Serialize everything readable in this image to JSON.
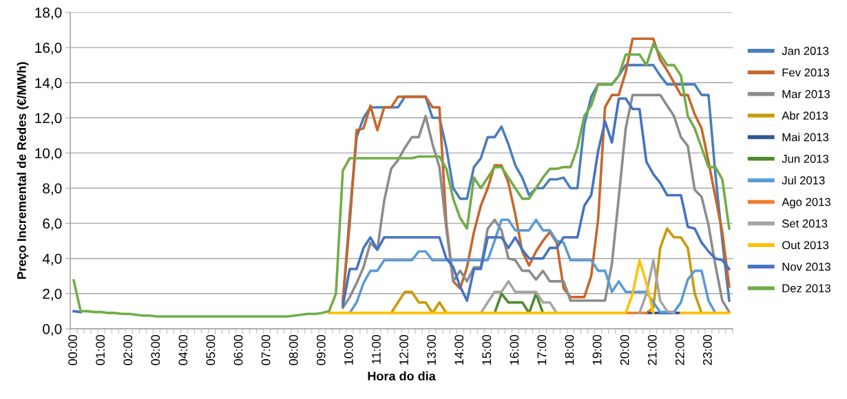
{
  "chart_data": {
    "type": "line",
    "xlabel": "Hora do dia",
    "ylabel": "Preço Incremental de Redes (€/MWh)",
    "categories": [
      "00:00",
      null,
      null,
      null,
      "01:00",
      null,
      null,
      null,
      "02:00",
      null,
      null,
      null,
      "03:00",
      null,
      null,
      null,
      "04:00",
      null,
      null,
      null,
      "05:00",
      null,
      null,
      null,
      "06:00",
      null,
      null,
      null,
      "07:00",
      null,
      null,
      null,
      "08:00",
      null,
      null,
      null,
      "09:00",
      null,
      null,
      null,
      "10:00",
      null,
      null,
      null,
      "11:00",
      null,
      null,
      null,
      "12:00",
      null,
      null,
      null,
      "13:00",
      null,
      null,
      null,
      "14:00",
      null,
      null,
      null,
      "15:00",
      null,
      null,
      null,
      "16:00",
      null,
      null,
      null,
      "17:00",
      null,
      null,
      null,
      "18:00",
      null,
      null,
      null,
      "19:00",
      null,
      null,
      null,
      "20:00",
      null,
      null,
      null,
      "21:00",
      null,
      null,
      null,
      "22:00",
      null,
      null,
      null,
      "23:00",
      null,
      null,
      null
    ],
    "ylim": [
      0,
      18
    ],
    "yticks": [
      {
        "value": 0,
        "label": "0,0"
      },
      {
        "value": 2,
        "label": "2,0"
      },
      {
        "value": 4,
        "label": "4,0"
      },
      {
        "value": 6,
        "label": "6,0"
      },
      {
        "value": 8,
        "label": "8,0"
      },
      {
        "value": 10,
        "label": "10,0"
      },
      {
        "value": 12,
        "label": "12,0"
      },
      {
        "value": 14,
        "label": "14,0"
      },
      {
        "value": 16,
        "label": "16,0"
      },
      {
        "value": 18,
        "label": "18,0"
      }
    ],
    "grid": "y",
    "legend": "right",
    "line_style": "solid",
    "marker": "none",
    "series": [
      {
        "name": "Jan 2013",
        "color": "#4a7ebb",
        "values": [
          null,
          null,
          null,
          null,
          null,
          null,
          null,
          null,
          null,
          null,
          null,
          null,
          null,
          null,
          null,
          null,
          null,
          null,
          null,
          null,
          null,
          null,
          null,
          null,
          null,
          null,
          null,
          null,
          null,
          null,
          null,
          null,
          null,
          null,
          null,
          null,
          null,
          null,
          null,
          1.5,
          6.5,
          10.9,
          12.0,
          12.6,
          12.6,
          12.6,
          12.6,
          12.6,
          13.2,
          13.2,
          13.2,
          13.2,
          12.0,
          12.0,
          10.3,
          8.0,
          7.4,
          7.4,
          9.2,
          9.7,
          10.9,
          10.9,
          11.5,
          10.5,
          9.3,
          8.6,
          7.6,
          8.0,
          8.0,
          8.5,
          8.5,
          8.6,
          8.0,
          8.0,
          11.6,
          13.2,
          13.9,
          13.9,
          13.9,
          14.4,
          15.0,
          15.0,
          15.0,
          15.0,
          15.0,
          14.4,
          13.9,
          13.9,
          13.9,
          13.9,
          13.9,
          13.3,
          13.3,
          8.8,
          5.0,
          1.6
        ]
      },
      {
        "name": "Fev 2013",
        "color": "#c8662a",
        "values": [
          null,
          null,
          null,
          null,
          null,
          null,
          null,
          null,
          null,
          null,
          null,
          null,
          null,
          null,
          null,
          null,
          null,
          null,
          null,
          null,
          null,
          null,
          null,
          null,
          null,
          null,
          null,
          null,
          null,
          null,
          null,
          null,
          null,
          null,
          null,
          null,
          null,
          null,
          null,
          1.6,
          6.0,
          11.3,
          11.4,
          12.7,
          11.3,
          12.6,
          12.6,
          13.2,
          13.2,
          13.2,
          13.2,
          13.2,
          12.6,
          12.6,
          6.0,
          2.7,
          2.3,
          3.5,
          5.5,
          7.0,
          8.0,
          9.3,
          9.3,
          8.3,
          6.5,
          4.4,
          3.6,
          4.4,
          5.0,
          5.5,
          4.9,
          2.3,
          1.8,
          1.8,
          1.8,
          3.0,
          6.2,
          12.6,
          13.3,
          13.3,
          14.6,
          16.5,
          16.5,
          16.5,
          16.5,
          15.3,
          14.7,
          14.0,
          13.3,
          13.3,
          12.2,
          11.4,
          9.5,
          7.5,
          5.5,
          2.4
        ]
      },
      {
        "name": "Mar 2013",
        "color": "#8c8c8c",
        "values": [
          null,
          null,
          null,
          null,
          null,
          null,
          null,
          null,
          null,
          null,
          null,
          null,
          null,
          null,
          null,
          null,
          null,
          null,
          null,
          null,
          null,
          null,
          null,
          null,
          null,
          null,
          null,
          null,
          null,
          null,
          null,
          null,
          null,
          null,
          null,
          null,
          null,
          null,
          null,
          1.2,
          1.8,
          2.6,
          3.5,
          4.9,
          4.5,
          7.3,
          9.1,
          9.6,
          10.3,
          10.9,
          10.9,
          12.1,
          10.5,
          9.2,
          5.7,
          2.7,
          3.3,
          2.7,
          3.5,
          3.5,
          5.7,
          6.2,
          5.6,
          4.0,
          3.9,
          3.3,
          3.3,
          2.8,
          3.3,
          2.7,
          2.7,
          2.7,
          1.6,
          1.6,
          1.6,
          1.6,
          1.6,
          1.6,
          3.7,
          7.5,
          11.4,
          13.3,
          13.3,
          13.3,
          13.3,
          13.3,
          12.7,
          12.1,
          10.9,
          10.4,
          7.9,
          7.5,
          5.9,
          3.6,
          1.6,
          0.95
        ]
      },
      {
        "name": "Abr 2013",
        "color": "#c99a06",
        "values": [
          null,
          null,
          null,
          null,
          null,
          null,
          null,
          null,
          null,
          null,
          null,
          null,
          null,
          null,
          null,
          null,
          null,
          null,
          null,
          null,
          null,
          null,
          null,
          null,
          null,
          null,
          null,
          null,
          null,
          null,
          null,
          null,
          null,
          null,
          null,
          null,
          null,
          null,
          null,
          null,
          null,
          null,
          null,
          null,
          null,
          null,
          0.9,
          1.5,
          2.1,
          2.1,
          1.5,
          1.5,
          0.9,
          1.5,
          0.9,
          null,
          null,
          null,
          null,
          null,
          null,
          null,
          null,
          null,
          null,
          null,
          null,
          null,
          null,
          null,
          null,
          null,
          null,
          null,
          null,
          null,
          null,
          null,
          null,
          null,
          null,
          null,
          null,
          0.9,
          1.2,
          4.6,
          5.7,
          5.2,
          5.2,
          4.6,
          2.0,
          0.9,
          null,
          null,
          null,
          null
        ]
      },
      {
        "name": "Mai 2013",
        "color": "#2f5597",
        "values": [
          null,
          null,
          null,
          null,
          null,
          null,
          null,
          null,
          null,
          null,
          null,
          null,
          null,
          null,
          null,
          null,
          null,
          null,
          null,
          null,
          null,
          null,
          null,
          null,
          null,
          null,
          null,
          null,
          null,
          null,
          null,
          null,
          null,
          null,
          null,
          null,
          null,
          null,
          null,
          null,
          null,
          null,
          null,
          null,
          null,
          null,
          null,
          null,
          null,
          null,
          null,
          null,
          null,
          null,
          null,
          null,
          null,
          null,
          null,
          null,
          null,
          null,
          null,
          null,
          null,
          null,
          null,
          null,
          null,
          null,
          null,
          null,
          null,
          null,
          null,
          null,
          null,
          null,
          null,
          null,
          null,
          null,
          null,
          0.9,
          0.9,
          0.9,
          0.9,
          0.9,
          0.9,
          null,
          null,
          null,
          null,
          null,
          null,
          null
        ]
      },
      {
        "name": "Jun 2013",
        "color": "#4e8a2e",
        "values": [
          null,
          null,
          null,
          null,
          null,
          null,
          null,
          null,
          null,
          null,
          null,
          null,
          null,
          null,
          null,
          null,
          null,
          null,
          null,
          null,
          null,
          null,
          null,
          null,
          null,
          null,
          null,
          null,
          null,
          null,
          null,
          null,
          null,
          null,
          null,
          null,
          null,
          null,
          null,
          null,
          null,
          null,
          null,
          null,
          null,
          null,
          null,
          null,
          null,
          null,
          null,
          null,
          null,
          null,
          null,
          null,
          null,
          null,
          null,
          null,
          null,
          0.9,
          2.0,
          1.5,
          1.5,
          1.5,
          0.9,
          2.0,
          0.9,
          null,
          null,
          null,
          null,
          null,
          null,
          null,
          null,
          null,
          null,
          null,
          null,
          null,
          null,
          null,
          null,
          null,
          null,
          null,
          null,
          null,
          null,
          null,
          null,
          null,
          null,
          null
        ]
      },
      {
        "name": "Jul 2013",
        "color": "#5b9bd5",
        "values": [
          null,
          null,
          null,
          null,
          null,
          null,
          null,
          null,
          null,
          null,
          null,
          null,
          null,
          null,
          null,
          null,
          null,
          null,
          null,
          null,
          null,
          null,
          null,
          null,
          null,
          null,
          null,
          null,
          null,
          null,
          null,
          null,
          null,
          null,
          null,
          null,
          null,
          null,
          null,
          null,
          0.9,
          1.5,
          2.6,
          3.3,
          3.3,
          3.9,
          3.9,
          3.9,
          3.9,
          3.9,
          4.4,
          4.4,
          3.9,
          3.9,
          3.9,
          3.9,
          3.9,
          3.9,
          3.9,
          3.9,
          3.9,
          5.0,
          6.2,
          6.2,
          5.6,
          5.6,
          5.6,
          6.2,
          5.6,
          5.6,
          5.0,
          4.9,
          3.9,
          3.9,
          3.9,
          3.9,
          3.3,
          3.3,
          2.1,
          2.7,
          2.1,
          2.1,
          2.1,
          2.1,
          1.5,
          0.95,
          0.95,
          0.95,
          1.5,
          2.8,
          3.3,
          3.3,
          1.6,
          0.9,
          null,
          null
        ]
      },
      {
        "name": "Ago 2013",
        "color": "#ed7d31",
        "values": [
          null,
          null,
          null,
          null,
          null,
          null,
          null,
          null,
          null,
          null,
          null,
          null,
          null,
          null,
          null,
          null,
          null,
          null,
          null,
          null,
          null,
          null,
          null,
          null,
          null,
          null,
          null,
          null,
          null,
          null,
          null,
          null,
          null,
          null,
          null,
          null,
          null,
          null,
          null,
          null,
          null,
          null,
          null,
          null,
          null,
          null,
          null,
          null,
          null,
          null,
          null,
          null,
          null,
          null,
          null,
          null,
          null,
          null,
          null,
          null,
          null,
          null,
          null,
          null,
          null,
          null,
          null,
          null,
          null,
          null,
          null,
          null,
          null,
          null,
          null,
          null,
          null,
          null,
          null,
          null,
          0.9,
          0.9,
          0.9,
          0.9,
          null,
          null,
          null,
          null,
          null,
          null,
          null,
          null,
          null,
          null,
          null,
          null
        ]
      },
      {
        "name": "Set 2013",
        "color": "#a5a5a5",
        "values": [
          null,
          null,
          null,
          null,
          null,
          null,
          null,
          null,
          null,
          null,
          null,
          null,
          null,
          null,
          null,
          null,
          null,
          null,
          null,
          null,
          null,
          null,
          null,
          null,
          null,
          null,
          null,
          null,
          null,
          null,
          null,
          null,
          null,
          null,
          null,
          null,
          null,
          null,
          null,
          null,
          null,
          null,
          null,
          null,
          null,
          null,
          null,
          null,
          null,
          null,
          null,
          null,
          null,
          null,
          null,
          null,
          null,
          null,
          null,
          0.9,
          1.5,
          2.1,
          2.1,
          2.7,
          2.1,
          2.1,
          2.1,
          2.1,
          1.5,
          1.5,
          0.9,
          null,
          null,
          null,
          null,
          null,
          null,
          null,
          null,
          null,
          null,
          null,
          0.9,
          2.0,
          3.9,
          1.6,
          1.0,
          0.9,
          null,
          null,
          null,
          null,
          null,
          null,
          null,
          null
        ]
      },
      {
        "name": "Out 2013",
        "color": "#ffc000",
        "values": [
          null,
          null,
          null,
          null,
          null,
          null,
          null,
          null,
          null,
          null,
          null,
          null,
          null,
          null,
          null,
          null,
          null,
          null,
          null,
          null,
          null,
          null,
          null,
          null,
          null,
          null,
          null,
          null,
          null,
          null,
          null,
          null,
          null,
          null,
          null,
          null,
          null,
          0.9,
          0.9,
          0.9,
          0.9,
          0.9,
          0.9,
          0.9,
          0.9,
          0.9,
          0.9,
          0.9,
          0.9,
          0.9,
          0.9,
          0.9,
          0.9,
          0.9,
          0.9,
          0.9,
          0.9,
          0.9,
          0.9,
          0.9,
          0.9,
          0.9,
          0.9,
          0.9,
          0.9,
          0.9,
          0.9,
          0.9,
          0.9,
          0.9,
          0.9,
          0.9,
          0.9,
          0.9,
          0.9,
          0.9,
          0.9,
          0.9,
          0.9,
          0.9,
          0.9,
          2.0,
          3.9,
          2.6,
          0.9,
          null,
          null,
          null,
          0.9,
          0.9,
          0.9,
          0.9,
          0.9,
          0.9,
          0.9,
          0.9
        ]
      },
      {
        "name": "Nov 2013",
        "color": "#4472c4",
        "values": [
          1.0,
          0.95,
          null,
          null,
          null,
          null,
          null,
          null,
          null,
          null,
          null,
          null,
          null,
          null,
          null,
          null,
          null,
          null,
          null,
          null,
          null,
          null,
          null,
          null,
          null,
          null,
          null,
          null,
          null,
          null,
          null,
          null,
          null,
          null,
          null,
          null,
          null,
          null,
          null,
          1.3,
          3.4,
          3.4,
          4.6,
          5.2,
          4.5,
          5.2,
          5.2,
          5.2,
          5.2,
          5.2,
          5.2,
          5.2,
          5.2,
          5.2,
          4.0,
          3.5,
          2.4,
          1.6,
          3.4,
          3.4,
          5.2,
          5.2,
          5.2,
          4.6,
          5.2,
          4.5,
          4.0,
          4.0,
          4.0,
          4.6,
          4.6,
          5.2,
          5.2,
          5.2,
          7.0,
          7.6,
          10.1,
          11.8,
          10.6,
          13.1,
          13.1,
          12.5,
          12.5,
          9.5,
          8.8,
          8.3,
          7.6,
          7.6,
          7.6,
          5.8,
          5.7,
          4.9,
          4.4,
          4.0,
          3.9,
          3.4
        ]
      },
      {
        "name": "Dez 2013",
        "color": "#70ad47",
        "values": [
          2.75,
          1.0,
          1.0,
          0.95,
          0.95,
          0.9,
          0.9,
          0.85,
          0.85,
          0.8,
          0.75,
          0.75,
          0.7,
          0.7,
          0.7,
          0.7,
          0.7,
          0.7,
          0.7,
          0.7,
          0.7,
          0.7,
          0.7,
          0.7,
          0.7,
          0.7,
          0.7,
          0.7,
          0.7,
          0.7,
          0.7,
          0.7,
          0.75,
          0.8,
          0.85,
          0.85,
          0.9,
          1.0,
          2.0,
          9.0,
          9.7,
          9.7,
          9.7,
          9.7,
          9.7,
          9.7,
          9.7,
          9.7,
          9.7,
          9.7,
          9.8,
          9.8,
          9.8,
          9.8,
          9.1,
          7.4,
          6.3,
          5.7,
          8.6,
          8.0,
          8.6,
          9.2,
          9.2,
          8.6,
          8.0,
          7.4,
          7.4,
          8.0,
          8.6,
          9.1,
          9.1,
          9.2,
          9.2,
          10.3,
          12.1,
          12.7,
          13.9,
          13.9,
          13.9,
          14.4,
          15.6,
          15.6,
          15.6,
          15.0,
          16.2,
          15.6,
          15.0,
          15.0,
          14.4,
          12.1,
          11.4,
          10.3,
          9.2,
          9.2,
          8.5,
          5.7
        ]
      }
    ]
  }
}
